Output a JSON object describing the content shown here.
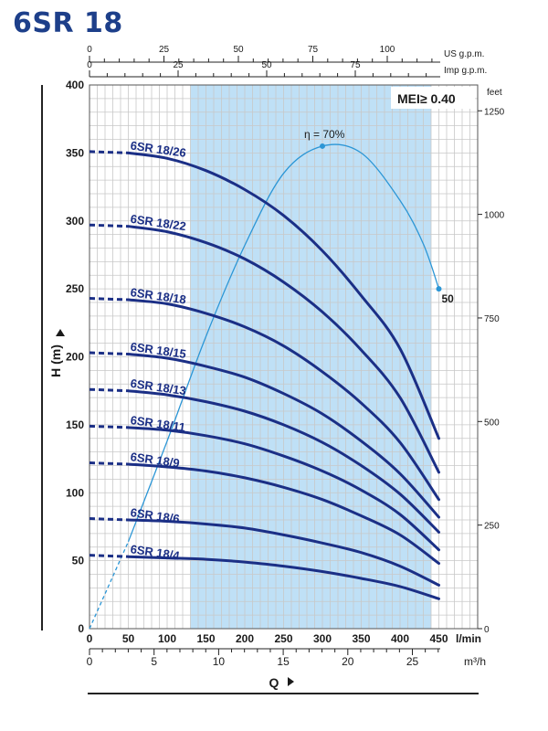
{
  "page": {
    "title": "6SR 18"
  },
  "chart_data": {
    "type": "line",
    "title": "6SR 18",
    "xlabel": "Q",
    "ylabel": "H (m)",
    "x_unit": "l/min",
    "xlim": [
      0,
      500
    ],
    "ylim": [
      0,
      400
    ],
    "x_ticks": [
      0,
      50,
      100,
      150,
      200,
      250,
      300,
      350,
      400,
      450
    ],
    "y_ticks": [
      0,
      50,
      100,
      150,
      200,
      250,
      300,
      350,
      400
    ],
    "secondary_axes": {
      "top_us": {
        "label": "US g.p.m.",
        "ticks": [
          0,
          25,
          50,
          75,
          100
        ]
      },
      "top_imp": {
        "label": "Imp g.p.m.",
        "ticks": [
          0,
          25,
          50,
          75
        ]
      },
      "bottom_m3h": {
        "label": "m³/h",
        "ticks": [
          0,
          5,
          10,
          15,
          20,
          25
        ]
      },
      "right_feet": {
        "label": "feet",
        "ticks": [
          0,
          250,
          500,
          750,
          1000,
          1250
        ]
      }
    },
    "recommended_range": [
      130,
      440
    ],
    "mei_label": "MEI≥ 0.40",
    "grid": true,
    "series": [
      {
        "name": "6SR 18/26",
        "points": [
          [
            0,
            351
          ],
          [
            50,
            350
          ],
          [
            100,
            346
          ],
          [
            150,
            337
          ],
          [
            200,
            323
          ],
          [
            250,
            304
          ],
          [
            300,
            278
          ],
          [
            350,
            245
          ],
          [
            400,
            206
          ],
          [
            450,
            140
          ]
        ]
      },
      {
        "name": "6SR 18/22",
        "points": [
          [
            0,
            297
          ],
          [
            50,
            296
          ],
          [
            100,
            292
          ],
          [
            150,
            284
          ],
          [
            200,
            272
          ],
          [
            250,
            255
          ],
          [
            300,
            233
          ],
          [
            350,
            205
          ],
          [
            400,
            170
          ],
          [
            450,
            115
          ]
        ]
      },
      {
        "name": "6SR 18/18",
        "points": [
          [
            0,
            243
          ],
          [
            50,
            242
          ],
          [
            100,
            239
          ],
          [
            150,
            232
          ],
          [
            200,
            222
          ],
          [
            250,
            208
          ],
          [
            300,
            189
          ],
          [
            350,
            166
          ],
          [
            400,
            137
          ],
          [
            450,
            95
          ]
        ]
      },
      {
        "name": "6SR 18/15",
        "points": [
          [
            0,
            203
          ],
          [
            50,
            202
          ],
          [
            100,
            199
          ],
          [
            150,
            193
          ],
          [
            200,
            185
          ],
          [
            250,
            173
          ],
          [
            300,
            158
          ],
          [
            350,
            138
          ],
          [
            400,
            114
          ],
          [
            450,
            82
          ]
        ]
      },
      {
        "name": "6SR 18/13",
        "points": [
          [
            0,
            176
          ],
          [
            50,
            175
          ],
          [
            100,
            172
          ],
          [
            150,
            167
          ],
          [
            200,
            160
          ],
          [
            250,
            150
          ],
          [
            300,
            137
          ],
          [
            350,
            120
          ],
          [
            400,
            99
          ],
          [
            450,
            71
          ]
        ]
      },
      {
        "name": "6SR 18/11",
        "points": [
          [
            0,
            149
          ],
          [
            50,
            148
          ],
          [
            100,
            146
          ],
          [
            150,
            142
          ],
          [
            200,
            136
          ],
          [
            250,
            127
          ],
          [
            300,
            116
          ],
          [
            350,
            102
          ],
          [
            400,
            84
          ],
          [
            450,
            58
          ]
        ]
      },
      {
        "name": "6SR 18/9",
        "points": [
          [
            0,
            122
          ],
          [
            50,
            121
          ],
          [
            100,
            119
          ],
          [
            150,
            116
          ],
          [
            200,
            111
          ],
          [
            250,
            104
          ],
          [
            300,
            95
          ],
          [
            350,
            83
          ],
          [
            400,
            69
          ],
          [
            450,
            48
          ]
        ]
      },
      {
        "name": "6SR 18/6",
        "points": [
          [
            0,
            81
          ],
          [
            50,
            80
          ],
          [
            100,
            79
          ],
          [
            150,
            77
          ],
          [
            200,
            74
          ],
          [
            250,
            69
          ],
          [
            300,
            63
          ],
          [
            350,
            56
          ],
          [
            400,
            46
          ],
          [
            450,
            32
          ]
        ]
      },
      {
        "name": "6SR 18/4",
        "points": [
          [
            0,
            54
          ],
          [
            50,
            53
          ],
          [
            100,
            52
          ],
          [
            150,
            51
          ],
          [
            200,
            49
          ],
          [
            250,
            46
          ],
          [
            300,
            42
          ],
          [
            350,
            37
          ],
          [
            400,
            31
          ],
          [
            450,
            22
          ]
        ]
      }
    ],
    "efficiency_curve": {
      "label": "η = 70%",
      "end_label": "50",
      "points": [
        [
          0,
          0
        ],
        [
          50,
          64
        ],
        [
          100,
          138
        ],
        [
          150,
          215
        ],
        [
          200,
          282
        ],
        [
          250,
          335
        ],
        [
          300,
          355
        ],
        [
          350,
          350
        ],
        [
          400,
          315
        ],
        [
          430,
          283
        ],
        [
          450,
          250
        ]
      ],
      "marker_points": [
        [
          300,
          355
        ],
        [
          450,
          250
        ]
      ]
    }
  }
}
